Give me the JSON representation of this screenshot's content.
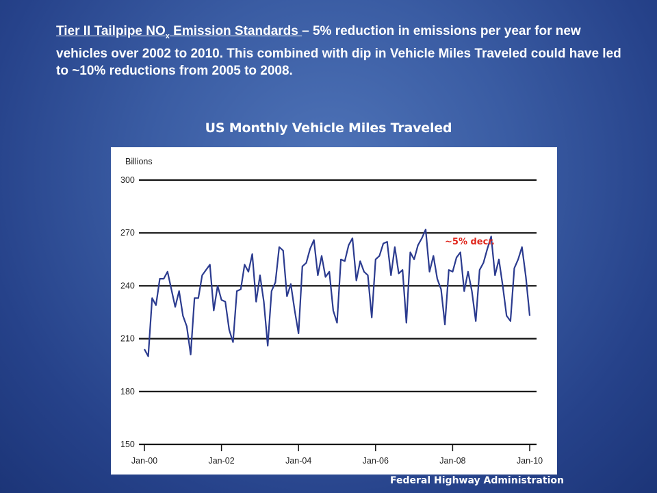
{
  "intro": {
    "underlined_lead": "Tier II Tailpipe NO",
    "subscript": "x",
    "underlined_tail": " Emission Standards ",
    "dash_text": "– 5% reduction in emissions per year for new vehicles over 2002 to 2010.  This combined with dip in Vehicle Miles Traveled  could have led to ~10% reductions from 2005 to 2008."
  },
  "chart_data": {
    "type": "line",
    "title": "US Monthly Vehicle Miles Traveled",
    "ylabel": "Billions",
    "xlabel": "",
    "ylim": [
      150,
      300
    ],
    "yticks": [
      "150",
      "180",
      "210",
      "240",
      "270",
      "300"
    ],
    "xlim": [
      2000,
      2010
    ],
    "xticks": [
      "Jan-00",
      "Jan-02",
      "Jan-04",
      "Jan-06",
      "Jan-08",
      "Jan-10"
    ],
    "grid": "horizontal",
    "annotation": "~5% decr.",
    "series": [
      {
        "color": "#2b3b8f",
        "x": [
          2000.0,
          2000.1,
          2000.2,
          2000.3,
          2000.4,
          2000.5,
          2000.6,
          2000.8,
          2000.9,
          2001.0,
          2001.1,
          2001.2,
          2001.3,
          2001.4,
          2001.5,
          2001.7,
          2001.8,
          2001.9,
          2002.0,
          2002.1,
          2002.2,
          2002.3,
          2002.4,
          2002.5,
          2002.6,
          2002.7,
          2002.8,
          2002.9,
          2003.0,
          2003.1,
          2003.2,
          2003.3,
          2003.4,
          2003.5,
          2003.6,
          2003.7,
          2003.8,
          2003.9,
          2004.0,
          2004.1,
          2004.2,
          2004.3,
          2004.4,
          2004.5,
          2004.6,
          2004.7,
          2004.8,
          2004.9,
          2005.0,
          2005.1,
          2005.2,
          2005.3,
          2005.4,
          2005.5,
          2005.6,
          2005.7,
          2005.8,
          2005.9,
          2006.0,
          2006.1,
          2006.2,
          2006.3,
          2006.4,
          2006.5,
          2006.6,
          2006.7,
          2006.8,
          2006.9,
          2007.0,
          2007.1,
          2007.2,
          2007.3,
          2007.4,
          2007.5,
          2007.6,
          2007.7,
          2007.8,
          2007.9,
          2008.0,
          2008.1,
          2008.2,
          2008.3,
          2008.4,
          2008.5,
          2008.6,
          2008.7,
          2008.8,
          2008.9,
          2009.0,
          2009.1,
          2009.2,
          2009.3,
          2009.4,
          2009.5,
          2009.6,
          2009.7,
          2009.8,
          2009.9,
          2010.0
        ],
        "values": [
          204,
          200,
          233,
          229,
          244,
          244,
          248,
          228,
          237,
          223,
          217,
          201,
          233,
          233,
          246,
          252,
          226,
          240,
          232,
          231,
          215,
          208,
          237,
          238,
          252,
          248,
          258,
          231,
          246,
          231,
          206,
          237,
          242,
          262,
          260,
          234,
          241,
          226,
          213,
          251,
          253,
          261,
          266,
          246,
          257,
          245,
          248,
          226,
          219,
          255,
          254,
          263,
          267,
          243,
          254,
          248,
          246,
          222,
          255,
          257,
          264,
          265,
          246,
          262,
          247,
          249,
          219,
          259,
          255,
          263,
          267,
          272,
          248,
          257,
          244,
          238,
          218,
          249,
          248,
          256,
          259,
          237,
          248,
          237,
          220,
          249,
          253,
          261,
          268,
          246,
          255,
          240,
          223,
          220,
          250,
          255,
          262,
          245,
          223
        ]
      }
    ]
  },
  "source": "Federal Highway Administration"
}
